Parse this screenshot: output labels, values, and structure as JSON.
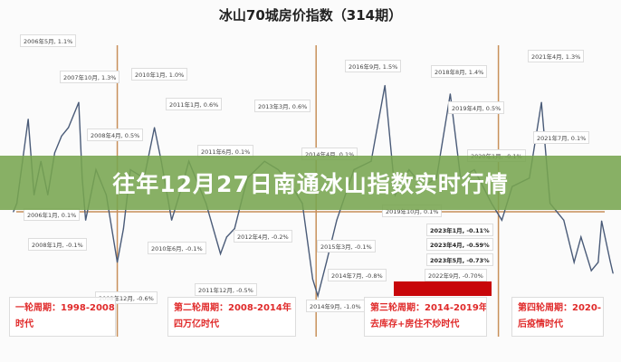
{
  "banner": {
    "text": "往年12月27日南通冰山指数实时行情"
  },
  "chart_data": {
    "type": "line",
    "title": "冰山70城房价指数（314期）",
    "ylabel": "",
    "xlabel": "",
    "ylim": [
      -1.3,
      1.9
    ],
    "xlim": [
      2005.5,
      2023.6
    ],
    "grid": false,
    "line_color": "#4a5b78",
    "series": [
      {
        "points": [
          [
            2005.9,
            0.0
          ],
          [
            2006.0,
            0.1
          ],
          [
            2006.33,
            1.1
          ],
          [
            2006.5,
            0.2
          ],
          [
            2006.7,
            0.6
          ],
          [
            2006.9,
            0.2
          ],
          [
            2007.1,
            0.7
          ],
          [
            2007.3,
            0.9
          ],
          [
            2007.5,
            1.0
          ],
          [
            2007.8,
            1.3
          ],
          [
            2007.9,
            0.4
          ],
          [
            2008.0,
            -0.1
          ],
          [
            2008.3,
            0.5
          ],
          [
            2008.6,
            0.2
          ],
          [
            2008.92,
            -0.6
          ],
          [
            2009.1,
            -0.2
          ],
          [
            2009.3,
            0.5
          ],
          [
            2009.7,
            0.4
          ],
          [
            2010.0,
            1.0
          ],
          [
            2010.2,
            0.6
          ],
          [
            2010.5,
            -0.1
          ],
          [
            2010.8,
            0.3
          ],
          [
            2011.0,
            0.6
          ],
          [
            2011.5,
            0.1
          ],
          [
            2011.92,
            -0.5
          ],
          [
            2012.1,
            -0.3
          ],
          [
            2012.33,
            -0.2
          ],
          [
            2012.7,
            0.4
          ],
          [
            2013.2,
            0.6
          ],
          [
            2013.6,
            0.5
          ],
          [
            2014.0,
            0.3
          ],
          [
            2014.3,
            0.1
          ],
          [
            2014.6,
            -0.8
          ],
          [
            2014.75,
            -1.0
          ],
          [
            2015.0,
            -0.6
          ],
          [
            2015.3,
            -0.1
          ],
          [
            2015.8,
            0.5
          ],
          [
            2016.3,
            0.6
          ],
          [
            2016.7,
            1.5
          ],
          [
            2017.0,
            0.2
          ],
          [
            2017.4,
            0.5
          ],
          [
            2017.8,
            0.3
          ],
          [
            2018.2,
            0.4
          ],
          [
            2018.6,
            1.4
          ],
          [
            2018.9,
            0.4
          ],
          [
            2019.3,
            0.5
          ],
          [
            2019.8,
            0.1
          ],
          [
            2020.1,
            -0.1
          ],
          [
            2020.4,
            0.3
          ],
          [
            2020.9,
            0.4
          ],
          [
            2021.25,
            1.3
          ],
          [
            2021.5,
            0.1
          ],
          [
            2021.9,
            -0.1
          ],
          [
            2022.2,
            -0.6
          ],
          [
            2022.4,
            -0.3
          ],
          [
            2022.7,
            -0.7
          ],
          [
            2022.9,
            -0.6
          ],
          [
            2023.0,
            -0.11
          ],
          [
            2023.25,
            -0.59
          ],
          [
            2023.33,
            -0.73
          ]
        ]
      }
    ],
    "reference_lines": {
      "zero": 0,
      "cycle_boundaries": [
        2008.92,
        2014.7,
        2020.0
      ],
      "color": "#c8905a"
    },
    "annotations": [
      "2006年5月, 1.1%",
      "2007年10月, 1.3%",
      "2010年1月, 1.0%",
      "2011年1月, 0.6%",
      "2013年3月, 0.6%",
      "2008年4月, 0.5%",
      "2011年6月, 0.1%",
      "2014年4月, 0.1%",
      "2016年9月, 1.5%",
      "2018年8月, 1.4%",
      "2019年4月, 0.5%",
      "2020年1月, -0.1%",
      "2021年4月, 1.3%",
      "2021年7月, 0.1%",
      "2006年1月, 0.1%",
      "2008年1月, -0.1%",
      "2010年6月, -0.1%",
      "2012年4月, -0.2%",
      "2011年12月, -0.5%",
      "2008年12月, -0.6%",
      "2019年10月, 0.1%",
      "2015年3月, -0.1%",
      "2014年7月, -0.8%",
      "2014年9月, -1.0%",
      "2023年1月, -0.11%",
      "2023年4月, -0.59%",
      "2023年5月, -0.73%",
      "2022年9月, -0.70%"
    ],
    "cycles": [
      {
        "line1": "一轮周期：1998-2008年",
        "line2": "时代"
      },
      {
        "line1": "第二轮周期：2008-2014年",
        "line2": "四万亿时代"
      },
      {
        "line1": "第三轮周期：2014-2019年",
        "line2": "去库存+房住不炒时代"
      },
      {
        "line1": "第四轮周期：2020-",
        "line2": "后疫情时代"
      }
    ]
  }
}
